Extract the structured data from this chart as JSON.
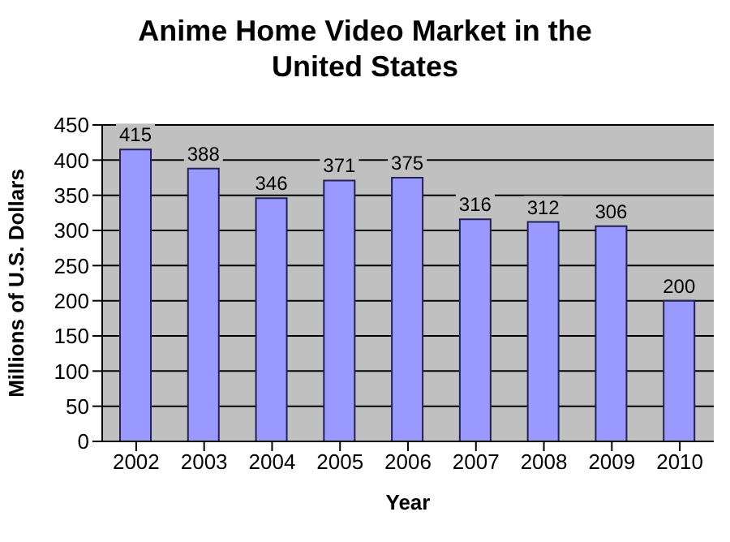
{
  "chart_data": {
    "type": "bar",
    "title": "Anime Home Video Market in the United States",
    "xlabel": "Year",
    "ylabel": "Millions of U.S. Dollars",
    "categories": [
      "2002",
      "2003",
      "2004",
      "2005",
      "2006",
      "2007",
      "2008",
      "2009",
      "2010"
    ],
    "values": [
      415,
      388,
      346,
      371,
      375,
      316,
      312,
      306,
      200
    ],
    "color": "#9999ff",
    "ylim": [
      0,
      450
    ],
    "yticks": [
      0,
      50,
      100,
      150,
      200,
      250,
      300,
      350,
      400,
      450
    ],
    "grid": "y",
    "data_labels": true
  }
}
